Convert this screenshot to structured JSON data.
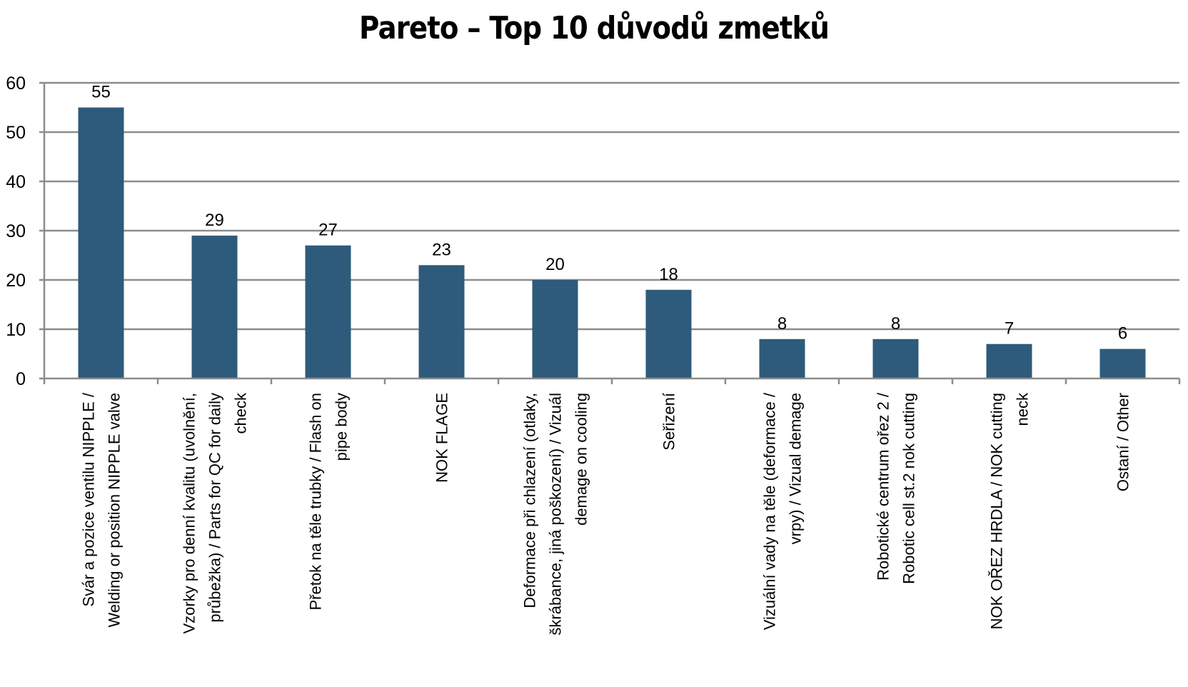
{
  "chart_data": {
    "type": "bar",
    "title": "Pareto – Top 10 důvodů zmetků",
    "xlabel": "",
    "ylabel": "",
    "ylim": [
      0,
      60
    ],
    "yticks": [
      0,
      10,
      20,
      30,
      40,
      50,
      60
    ],
    "grid": true,
    "bar_color": "#2e5b7b",
    "grid_color": "#8c8c8c",
    "categories": [
      [
        "Svár a pozice ventilu NIPPLE /",
        "Welding or position NIPPLE valve"
      ],
      [
        "Vzorky pro denní kvalitu (uvolnění,",
        "průbežka) / Parts for QC for daily",
        "check"
      ],
      [
        "Přetok na těle trubky / Flash on",
        "pipe body"
      ],
      [
        "NOK FLAGE"
      ],
      [
        "Deformace při chlazení (otlaky,",
        "škrábance, jiná poškození) / Vizuál",
        "demage on cooling"
      ],
      [
        "Seřizení"
      ],
      [
        "Vizuální vady na těle  (deformace /",
        "vrpy)  / Vizual demage"
      ],
      [
        "Robotické centrum ořez 2  /",
        "Robotic cell st.2 nok cutting"
      ],
      [
        "NOK OŘEZ HRDLA / NOK cutting",
        "neck"
      ],
      [
        "Ostaní / Other"
      ]
    ],
    "values": [
      55,
      29,
      27,
      23,
      20,
      18,
      8,
      8,
      7,
      6
    ]
  }
}
